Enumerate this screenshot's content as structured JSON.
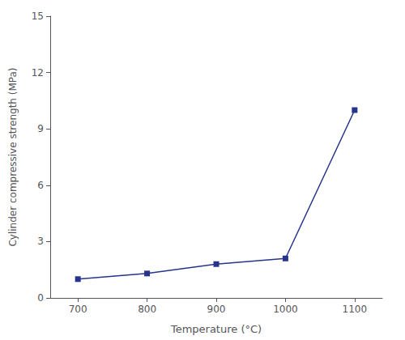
{
  "chart_data": {
    "type": "line",
    "x": [
      700,
      800,
      900,
      1000,
      1100
    ],
    "values": [
      1.0,
      1.3,
      1.8,
      2.1,
      10.0
    ],
    "color": "#27348b",
    "marker": "square",
    "xlabel": "Temperature (°C)",
    "ylabel": "Cylinder compressive strength (MPa)",
    "xlim": [
      660,
      1140
    ],
    "ylim": [
      0,
      15
    ],
    "xticks": [
      700,
      800,
      900,
      1000,
      1100
    ],
    "yticks": [
      0,
      3,
      6,
      9,
      12,
      15
    ],
    "grid": false
  }
}
